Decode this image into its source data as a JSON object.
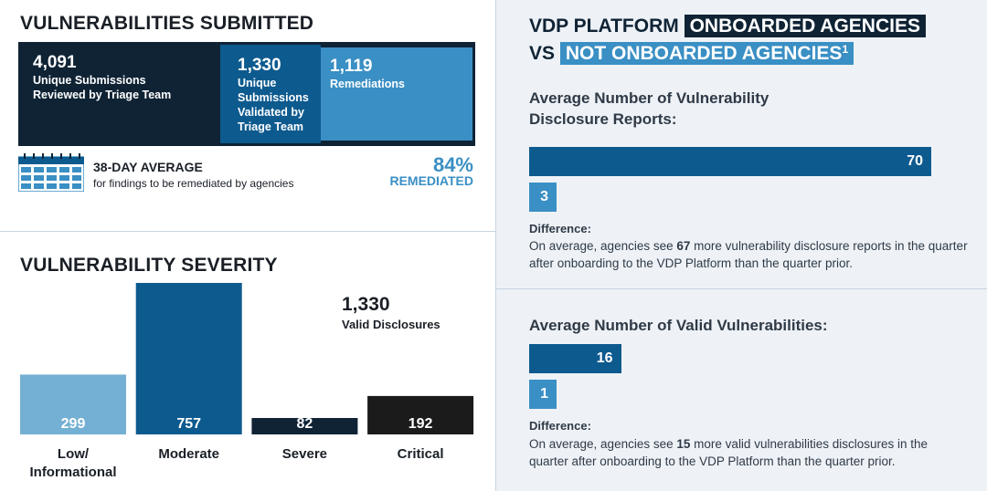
{
  "submitted": {
    "title": "VULNERABILITIES SUBMITTED",
    "reviewed": {
      "value": "4,091",
      "label": "Unique Submissions Reviewed by Triage Team"
    },
    "validated": {
      "value": "1,330",
      "label": "Unique Submissions Validated by Triage Team"
    },
    "remediations": {
      "value": "1,119",
      "label": "Remediations"
    },
    "average": {
      "title": "38-DAY AVERAGE",
      "subtitle": "for findings to be remediated by agencies"
    },
    "remediated": {
      "value": "84%",
      "label": "REMEDIATED"
    }
  },
  "severity": {
    "title": "VULNERABILITY SEVERITY",
    "total_value": "1,330",
    "total_label": "Valid Disclosures"
  },
  "chart_data": [
    {
      "type": "bar",
      "title": "VULNERABILITY SEVERITY",
      "categories": [
        "Low/ Informational",
        "Moderate",
        "Severe",
        "Critical"
      ],
      "category_lines": [
        [
          "Low/",
          "Informational"
        ],
        [
          "Moderate"
        ],
        [
          "Severe"
        ],
        [
          "Critical"
        ]
      ],
      "values": [
        299,
        757,
        82,
        192
      ],
      "colors": [
        "#74b0d3",
        "#0d5a8f",
        "#0f2335",
        "#1b1b1b"
      ],
      "ylim": [
        0,
        757
      ],
      "xlabel": "",
      "ylabel": ""
    },
    {
      "type": "bar",
      "orientation": "horizontal",
      "title": "Average Number of Vulnerability Disclosure Reports:",
      "categories": [
        "Onboarded Agencies",
        "Not Onboarded Agencies"
      ],
      "values": [
        70,
        3
      ],
      "xlim": [
        0,
        70
      ]
    },
    {
      "type": "bar",
      "orientation": "horizontal",
      "title": "Average Number of Valid Vulnerabilities:",
      "categories": [
        "Onboarded Agencies",
        "Not Onboarded Agencies"
      ],
      "values": [
        16,
        1
      ],
      "xlim": [
        0,
        70
      ]
    }
  ],
  "vdp": {
    "line1_prefix": "VDP PLATFORM",
    "onboarded": "ONBOARDED AGENCIES",
    "line2_prefix": "VS",
    "not_onboarded": "NOT ONBOARDED AGENCIES",
    "footnote": "1",
    "reports": {
      "title": "Average Number of Vulnerability Disclosure Reports:",
      "diff_heading": "Difference:",
      "diff_pre": "On average, agencies see",
      "diff_value": "67",
      "diff_post": "more vulnerability disclosure reports in the quarter after onboarding to the VDP Platform than the quarter prior."
    },
    "valid": {
      "title": "Average Number of Valid Vulnerabilities:",
      "diff_heading": "Difference:",
      "diff_pre": "On average, agencies see",
      "diff_value": "15",
      "diff_post": "more valid vulnerabilities disclosures in the quarter after onboarding to the VDP Platform than the quarter prior."
    }
  },
  "colors": {
    "navy": "#0f2335",
    "blue": "#0d5a8f",
    "light_blue": "#3a8fc4",
    "pale_blue": "#74b0d3"
  }
}
